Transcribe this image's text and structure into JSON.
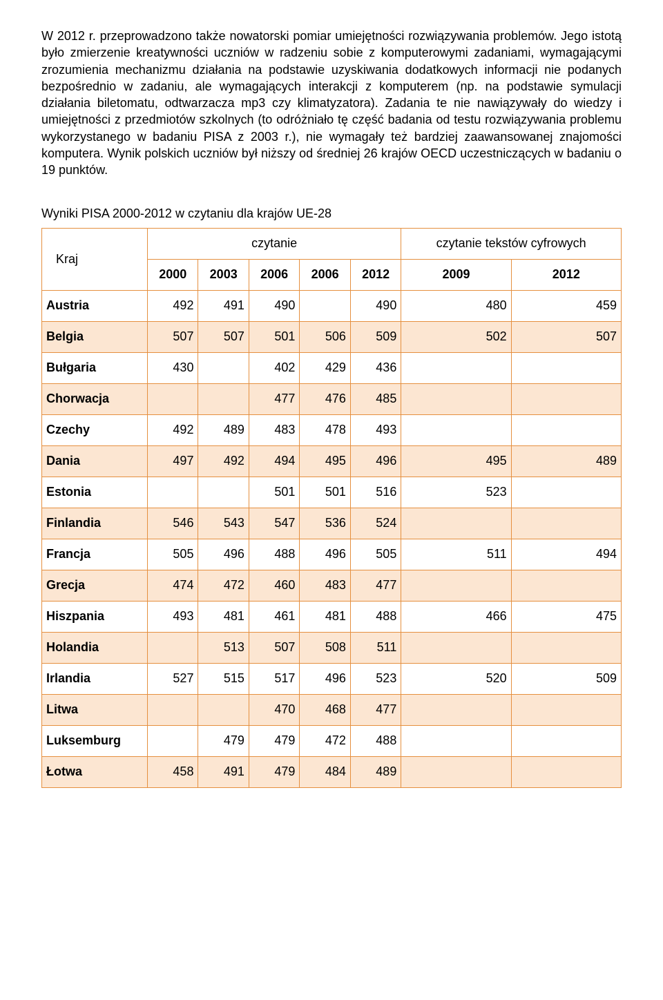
{
  "paragraph": "W 2012 r. przeprowadzono także nowatorski pomiar umiejętności rozwiązywania problemów. Jego istotą było zmierzenie kreatywności uczniów w radzeniu sobie z komputerowymi zadaniami, wymagającymi zrozumienia mechanizmu działania na podstawie uzyskiwania dodatkowych informacji nie podanych bezpośrednio w zadaniu, ale wymagających interakcji z komputerem (np. na podstawie symulacji działania biletomatu, odtwarzacza mp3 czy klimatyzatora). Zadania te nie nawiązywały do wiedzy i umiejętności z przedmiotów szkolnych (to odróżniało tę część badania od testu rozwiązywania problemu wykorzystanego w badaniu PISA z 2003 r.), nie wymagały też bardziej zaawansowanej znajomości komputera. Wynik polskich uczniów był niższy od średniej 26 krajów OECD uczestniczących w badaniu o 19 punktów.",
  "table_title": "Wyniki PISA 2000-2012 w czytaniu dla krajów UE-28",
  "headers": {
    "kraj": "Kraj",
    "group1": "czytanie",
    "group2": "czytanie tekstów cyfrowych",
    "y2000": "2000",
    "y2003": "2003",
    "y2006a": "2006",
    "y2006b": "2006",
    "y2012": "2012",
    "y2009": "2009",
    "y2012b": "2012"
  },
  "rows": [
    {
      "country": "Austria",
      "v": [
        "492",
        "491",
        "490",
        "",
        "490",
        "480",
        "459"
      ]
    },
    {
      "country": "Belgia",
      "v": [
        "507",
        "507",
        "501",
        "506",
        "509",
        "502",
        "507"
      ]
    },
    {
      "country": "Bułgaria",
      "v": [
        "430",
        "",
        "402",
        "429",
        "436",
        "",
        ""
      ]
    },
    {
      "country": "Chorwacja",
      "v": [
        "",
        "",
        "477",
        "476",
        "485",
        "",
        ""
      ]
    },
    {
      "country": "Czechy",
      "v": [
        "492",
        "489",
        "483",
        "478",
        "493",
        "",
        ""
      ]
    },
    {
      "country": "Dania",
      "v": [
        "497",
        "492",
        "494",
        "495",
        "496",
        "495",
        "489"
      ]
    },
    {
      "country": "Estonia",
      "v": [
        "",
        "",
        "501",
        "501",
        "516",
        "523",
        ""
      ]
    },
    {
      "country": "Finlandia",
      "v": [
        "546",
        "543",
        "547",
        "536",
        "524",
        "",
        ""
      ]
    },
    {
      "country": "Francja",
      "v": [
        "505",
        "496",
        "488",
        "496",
        "505",
        "511",
        "494"
      ]
    },
    {
      "country": "Grecja",
      "v": [
        "474",
        "472",
        "460",
        "483",
        "477",
        "",
        ""
      ]
    },
    {
      "country": "Hiszpania",
      "v": [
        "493",
        "481",
        "461",
        "481",
        "488",
        "466",
        "475"
      ]
    },
    {
      "country": "Holandia",
      "v": [
        "",
        "513",
        "507",
        "508",
        "511",
        "",
        ""
      ]
    },
    {
      "country": "Irlandia",
      "v": [
        "527",
        "515",
        "517",
        "496",
        "523",
        "520",
        "509"
      ]
    },
    {
      "country": "Litwa",
      "v": [
        "",
        "",
        "470",
        "468",
        "477",
        "",
        ""
      ]
    },
    {
      "country": "Luksemburg",
      "v": [
        "",
        "479",
        "479",
        "472",
        "488",
        "",
        ""
      ]
    },
    {
      "country": "Łotwa",
      "v": [
        "458",
        "491",
        "479",
        "484",
        "489",
        "",
        ""
      ]
    }
  ]
}
